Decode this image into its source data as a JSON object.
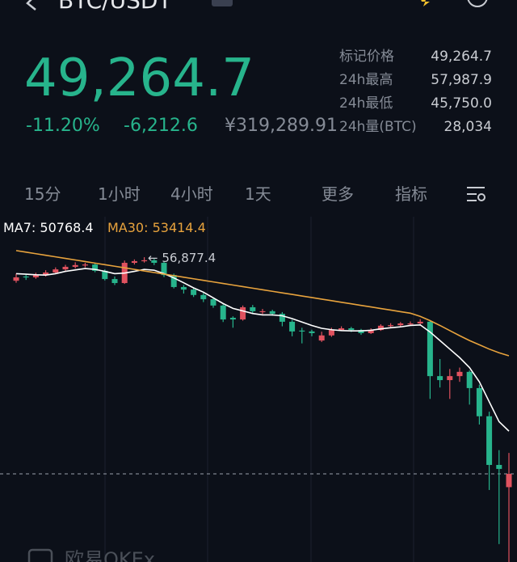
{
  "header": {
    "title": "BTC/USDT"
  },
  "price": {
    "last": "49,264.7",
    "change_pct": "-11.20%",
    "change": "-6,212.6",
    "cny": "¥319,289.91"
  },
  "stats": [
    {
      "label": "标记价格",
      "value": "49,264.7"
    },
    {
      "label": "24h最高",
      "value": "57,987.9"
    },
    {
      "label": "24h最低",
      "value": "45,750.0"
    },
    {
      "label": "24h量(BTC)",
      "value": "28,034"
    }
  ],
  "tabs": [
    "15分",
    "1小时",
    "4小时",
    "1天",
    "更多",
    "指标"
  ],
  "chart_data": {
    "type": "candlestick",
    "up_color": "#e0525f",
    "down_color": "#27b48c",
    "ylim": [
      46170,
      58300
    ],
    "last_price": 49264.7,
    "annotation": "← 56,877.4",
    "candles": [
      [
        56050,
        56300,
        55980,
        56170
      ],
      [
        56200,
        56280,
        56080,
        56170
      ],
      [
        56170,
        56330,
        56120,
        56250
      ],
      [
        56250,
        56420,
        56200,
        56340
      ],
      [
        56340,
        56520,
        56290,
        56450
      ],
      [
        56450,
        56610,
        56400,
        56540
      ],
      [
        56540,
        56700,
        56480,
        56600
      ],
      [
        56600,
        56680,
        56520,
        56620
      ],
      [
        56620,
        56660,
        56350,
        56400
      ],
      [
        56400,
        56450,
        56060,
        56110
      ],
      [
        56110,
        56200,
        55900,
        55970
      ],
      [
        55970,
        56760,
        55940,
        56680
      ],
      [
        56680,
        56800,
        56620,
        56740
      ],
      [
        56740,
        56877.4,
        56690,
        56770
      ],
      [
        56770,
        56820,
        56600,
        56680
      ],
      [
        56680,
        56720,
        56180,
        56250
      ],
      [
        56250,
        56300,
        55780,
        55830
      ],
      [
        55830,
        55900,
        55600,
        55740
      ],
      [
        55740,
        55800,
        55480,
        55550
      ],
      [
        55550,
        55620,
        55300,
        55400
      ],
      [
        55400,
        55450,
        55100,
        55180
      ],
      [
        55180,
        55220,
        54600,
        54690
      ],
      [
        54750,
        54800,
        54400,
        54690
      ],
      [
        54690,
        55180,
        54650,
        55120
      ],
      [
        55120,
        55200,
        54900,
        54980
      ],
      [
        54950,
        55060,
        54880,
        54980
      ],
      [
        54980,
        55030,
        54820,
        54890
      ],
      [
        54890,
        54950,
        54450,
        54610
      ],
      [
        54610,
        54680,
        54100,
        54270
      ],
      [
        54300,
        54400,
        53850,
        54270
      ],
      [
        54270,
        54330,
        54100,
        54210
      ],
      [
        53950,
        54260,
        53900,
        54130
      ],
      [
        54130,
        54400,
        54080,
        54320
      ],
      [
        54320,
        54450,
        54280,
        54380
      ],
      [
        54380,
        54430,
        54250,
        54320
      ],
      [
        54320,
        54360,
        54150,
        54210
      ],
      [
        54210,
        54380,
        54180,
        54320
      ],
      [
        54320,
        54520,
        54290,
        54470
      ],
      [
        54470,
        54560,
        54420,
        54490
      ],
      [
        54490,
        54600,
        54450,
        54550
      ],
      [
        54520,
        54620,
        54480,
        54550
      ],
      [
        54550,
        54700,
        54500,
        54610
      ],
      [
        54610,
        54660,
        51900,
        52700
      ],
      [
        52700,
        53300,
        52300,
        52560
      ],
      [
        52560,
        52950,
        51900,
        52700
      ],
      [
        52700,
        53000,
        52500,
        52850
      ],
      [
        52850,
        52900,
        51700,
        52280
      ],
      [
        52280,
        52400,
        51000,
        51290
      ],
      [
        51290,
        51450,
        48700,
        49580
      ],
      [
        49580,
        50100,
        46800,
        49440
      ],
      [
        48800,
        50000,
        46170,
        49264.7
      ]
    ],
    "series": [
      {
        "name": "MA7: 50768.4",
        "color": "#ffffff",
        "values": [
          56300,
          56280,
          56260,
          56250,
          56300,
          56380,
          56430,
          56480,
          56450,
          56380,
          56300,
          56320,
          56380,
          56450,
          56420,
          56300,
          56150,
          55980,
          55800,
          55650,
          55450,
          55250,
          55080,
          54990,
          54900,
          54850,
          54850,
          54820,
          54720,
          54600,
          54480,
          54380,
          54330,
          54300,
          54290,
          54290,
          54310,
          54360,
          54400,
          54430,
          54480,
          54500,
          54250,
          53950,
          53650,
          53350,
          53000,
          52500,
          51800,
          51100,
          50768.4
        ]
      },
      {
        "name": "MA30: 53414.4",
        "color": "#e8a33d",
        "values": [
          57110,
          57055,
          57000,
          56945,
          56890,
          56835,
          56780,
          56725,
          56670,
          56615,
          56560,
          56505,
          56450,
          56395,
          56340,
          56285,
          56230,
          56175,
          56120,
          56065,
          56010,
          55955,
          55900,
          55845,
          55790,
          55735,
          55680,
          55625,
          55570,
          55515,
          55460,
          55405,
          55350,
          55295,
          55240,
          55185,
          55130,
          55075,
          55020,
          54965,
          54910,
          54800,
          54650,
          54480,
          54300,
          54120,
          53950,
          53800,
          53650,
          53520,
          53414.4
        ]
      }
    ]
  },
  "watermark": "欧易OKEx"
}
